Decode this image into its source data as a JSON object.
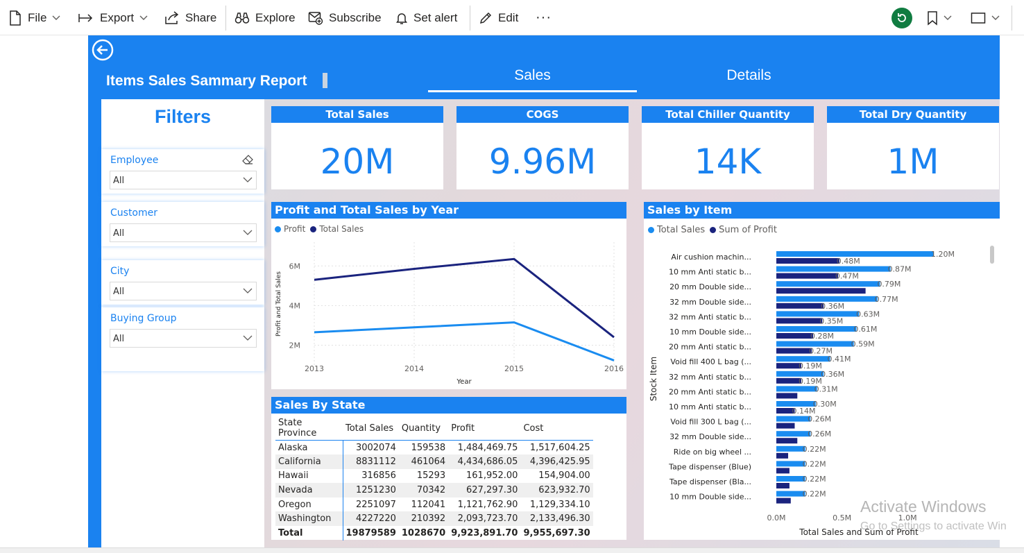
{
  "toolbar": {
    "file": "File",
    "export": "Export",
    "share": "Share",
    "explore": "Explore",
    "subscribe": "Subscribe",
    "set_alert": "Set alert",
    "edit": "Edit",
    "more": "···"
  },
  "header": {
    "title": "Items Sales Sammary Report",
    "tabs": [
      {
        "label": "Sales",
        "active": true
      },
      {
        "label": "Details",
        "active": false
      }
    ]
  },
  "colors": {
    "accent": "#1a82f0",
    "series_light": "#1a8cf0",
    "series_dark": "#1a237e"
  },
  "filters": {
    "title": "Filters",
    "slicers": [
      {
        "label": "Employee",
        "value": "All"
      },
      {
        "label": "Customer",
        "value": "All"
      },
      {
        "label": "City",
        "value": "All"
      },
      {
        "label": "Buying Group",
        "value": "All"
      }
    ]
  },
  "cards": [
    {
      "title": "Total Sales",
      "value": "20M"
    },
    {
      "title": "COGS",
      "value": "9.96M"
    },
    {
      "title": "Total Chiller Quantity",
      "value": "14K"
    },
    {
      "title": "Total Dry Quantity",
      "value": "1M"
    }
  ],
  "chart_data": [
    {
      "type": "line",
      "title": "Profit and Total Sales by Year",
      "xlabel": "Year",
      "ylabel": "Profit and Total Sales",
      "x": [
        "2013",
        "2014",
        "2015",
        "2016"
      ],
      "y_ticks": [
        "2M",
        "4M",
        "6M"
      ],
      "ylim": [
        1000000,
        7200000
      ],
      "grid": true,
      "legend": "top-left",
      "series": [
        {
          "name": "Profit",
          "color": "#1a8cf0",
          "values": [
            2650000,
            2900000,
            3150000,
            1230000
          ]
        },
        {
          "name": "Total Sales",
          "color": "#1a237e",
          "values": [
            5300000,
            5850000,
            6350000,
            2400000
          ]
        }
      ]
    },
    {
      "type": "bar",
      "orientation": "horizontal",
      "title": "Sales by Item",
      "xlabel": "Total Sales and Sum of Profit",
      "ylabel": "Stock Item",
      "x_ticks": [
        "0.0M",
        "0.5M",
        "1.0M"
      ],
      "xlim": [
        0,
        1.2
      ],
      "legend": "top-left",
      "categories": [
        "Air cushion machin...",
        "10 mm Anti static b...",
        "20 mm Double side...",
        "32 mm Double side...",
        "32 mm Anti static b...",
        "10 mm Double side...",
        "20 mm Anti static b...",
        "Void fill 400 L bag (...",
        "32 mm Anti static b...",
        "20 mm Anti static b...",
        "10 mm Anti static b...",
        "Void fill 300 L bag (...",
        "32 mm Double side...",
        "Ride on big wheel ...",
        "Tape dispenser (Blue)",
        "Tape dispenser (Bla...",
        "10 mm Double side..."
      ],
      "series": [
        {
          "name": "Total Sales",
          "color": "#1a8cf0",
          "values": [
            1.2,
            0.87,
            0.79,
            0.77,
            0.63,
            0.61,
            0.59,
            0.41,
            0.36,
            0.31,
            0.3,
            0.26,
            0.26,
            0.22,
            0.22,
            0.22,
            0.22
          ]
        },
        {
          "name": "Sum of Profit",
          "color": "#1a237e",
          "values": [
            0.48,
            0.47,
            0.68,
            0.36,
            0.35,
            0.28,
            0.27,
            0.19,
            0.19,
            0.16,
            0.14,
            0.14,
            0.16,
            0.09,
            0.1,
            0.1,
            0.11
          ]
        }
      ],
      "data_labels": [
        {
          "sales": "1.20M",
          "profit": "0.48M"
        },
        {
          "sales": "0.87M",
          "profit": "0.47M"
        },
        {
          "sales": "0.79M",
          "profit": ""
        },
        {
          "sales": "0.77M",
          "profit": "0.36M"
        },
        {
          "sales": "0.63M",
          "profit": "0.35M"
        },
        {
          "sales": "0.61M",
          "profit": "0.28M"
        },
        {
          "sales": "0.59M",
          "profit": "0.27M"
        },
        {
          "sales": "0.41M",
          "profit": "0.19M"
        },
        {
          "sales": "0.36M",
          "profit": "0.19M"
        },
        {
          "sales": "0.31M",
          "profit": ""
        },
        {
          "sales": "0.30M",
          "profit": "0.14M"
        },
        {
          "sales": "0.26M",
          "profit": ""
        },
        {
          "sales": "0.26M",
          "profit": ""
        },
        {
          "sales": "0.22M",
          "profit": ""
        },
        {
          "sales": "0.22M",
          "profit": ""
        },
        {
          "sales": "0.22M",
          "profit": ""
        },
        {
          "sales": "0.22M",
          "profit": ""
        }
      ]
    }
  ],
  "sales_by_state": {
    "title": "Sales By State",
    "columns": [
      "State Province",
      "Total Sales",
      "Quantity",
      "Profit",
      "Cost"
    ],
    "rows": [
      [
        "Alaska",
        "3002074",
        "159538",
        "1,484,469.75",
        "1,517,604.25"
      ],
      [
        "California",
        "8831112",
        "461064",
        "4,434,686.05",
        "4,396,425.95"
      ],
      [
        "Hawaii",
        "316856",
        "15293",
        "161,952.00",
        "154,904.00"
      ],
      [
        "Nevada",
        "1251230",
        "70342",
        "627,297.30",
        "623,932.70"
      ],
      [
        "Oregon",
        "2251097",
        "112041",
        "1,121,762.90",
        "1,129,334.10"
      ],
      [
        "Washington",
        "4227220",
        "210392",
        "2,093,723.70",
        "2,133,496.30"
      ]
    ],
    "total": [
      "Total",
      "19879589",
      "1028670",
      "9,923,891.70",
      "9,955,697.30"
    ]
  },
  "watermark": {
    "line1": "Activate Windows",
    "line2": "Go to Settings to activate Win"
  }
}
